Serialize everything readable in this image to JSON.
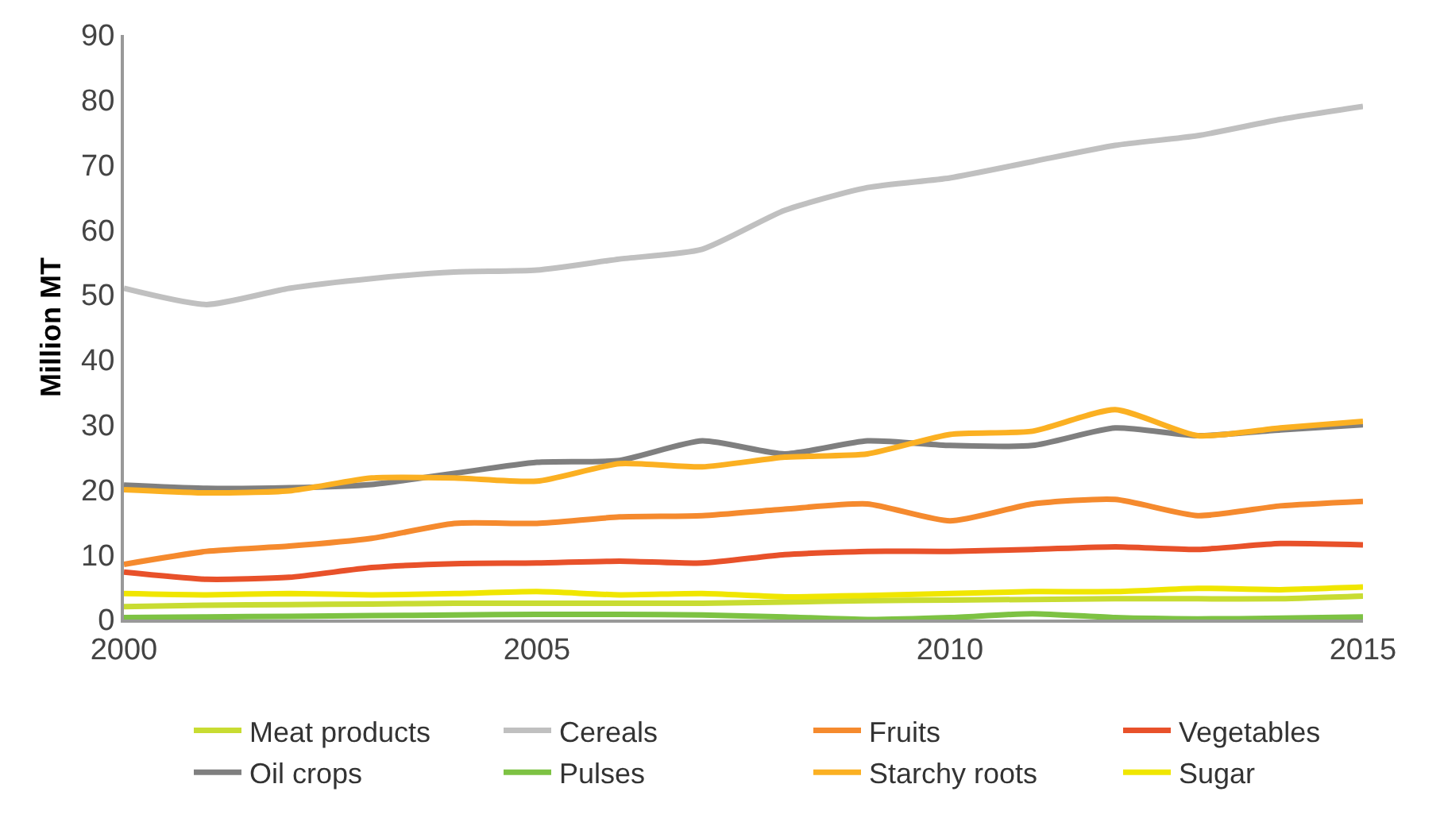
{
  "chart_data": {
    "type": "line",
    "ylabel": "Million MT",
    "x": [
      2000,
      2001,
      2002,
      2003,
      2004,
      2005,
      2006,
      2007,
      2008,
      2009,
      2010,
      2011,
      2012,
      2013,
      2014,
      2015
    ],
    "xlim": [
      2000,
      2015
    ],
    "xticks": [
      2000,
      2005,
      2010,
      2015
    ],
    "ylim": [
      0,
      90
    ],
    "yticks": [
      0,
      10,
      20,
      30,
      40,
      50,
      60,
      70,
      80,
      90
    ],
    "grid": false,
    "legend": "bottom",
    "marker": "none",
    "line_style": "solid",
    "series": [
      {
        "name": "Meat products",
        "color": "#c8dc32",
        "values": [
          2,
          2.2,
          2.3,
          2.4,
          2.5,
          2.5,
          2.5,
          2.5,
          2.7,
          2.9,
          3,
          3.1,
          3.2,
          3.2,
          3.2,
          3.6
        ]
      },
      {
        "name": "Cereals",
        "color": "#c0c0c0",
        "values": [
          51,
          48.5,
          51,
          52.5,
          53.5,
          53.8,
          55.5,
          57,
          63,
          66.5,
          68,
          70.5,
          73,
          74.5,
          77,
          79
        ]
      },
      {
        "name": "Fruits",
        "color": "#f58a2e",
        "values": [
          8.5,
          10.5,
          11.3,
          12.5,
          14.8,
          14.8,
          15.8,
          16,
          17,
          17.8,
          15.2,
          17.8,
          18.5,
          16,
          17.5,
          18.2
        ]
      },
      {
        "name": "Vegetables",
        "color": "#e8512a",
        "values": [
          7.3,
          6.2,
          6.5,
          8,
          8.6,
          8.7,
          9,
          8.7,
          10,
          10.5,
          10.5,
          10.8,
          11.2,
          10.8,
          11.7,
          11.5
        ]
      },
      {
        "name": "Oil crops",
        "color": "#7f7f7f",
        "values": [
          20.7,
          20.2,
          20.3,
          20.8,
          22.5,
          24.2,
          24.5,
          27.5,
          25.5,
          27.5,
          26.8,
          26.8,
          29.5,
          28.3,
          29.2,
          30
        ]
      },
      {
        "name": "Pulses",
        "color": "#7dc243",
        "values": [
          0.3,
          0.4,
          0.5,
          0.6,
          0.7,
          0.8,
          0.8,
          0.7,
          0.4,
          0,
          0.3,
          0.9,
          0.3,
          0.1,
          0.2,
          0.4
        ]
      },
      {
        "name": "Starchy roots",
        "color": "#fbb022",
        "values": [
          20,
          19.5,
          19.8,
          21.8,
          21.8,
          21.3,
          24,
          23.5,
          25,
          25.5,
          28.5,
          29,
          32.3,
          28.3,
          29.5,
          30.5
        ]
      },
      {
        "name": "Sugar",
        "color": "#f0e600",
        "values": [
          4,
          3.8,
          4,
          3.8,
          4,
          4.3,
          3.8,
          4,
          3.5,
          3.7,
          4,
          4.3,
          4.3,
          4.8,
          4.6,
          5
        ]
      }
    ]
  }
}
